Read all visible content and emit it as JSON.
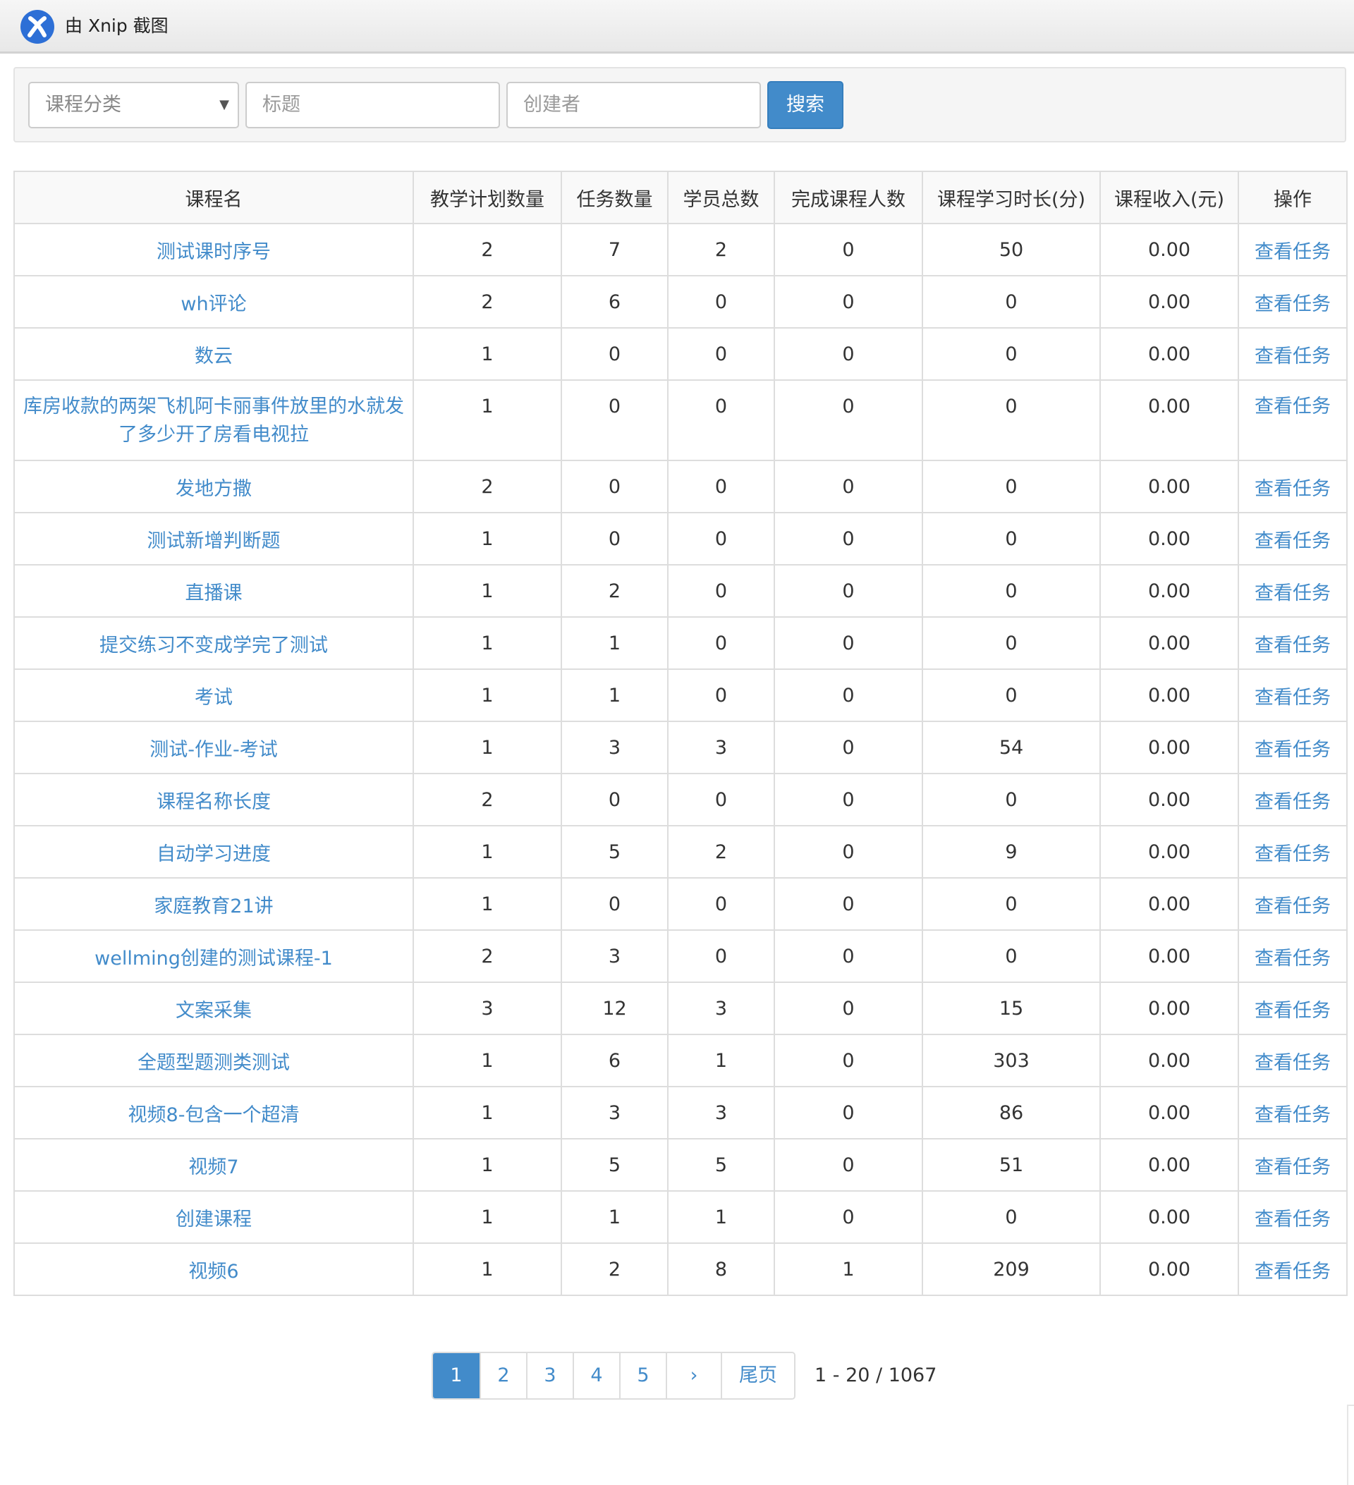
{
  "titlebar": {
    "text": "由 Xnip 截图"
  },
  "search": {
    "category_placeholder": "课程分类",
    "title_placeholder": "标题",
    "creator_placeholder": "创建者",
    "search_label": "搜索"
  },
  "table": {
    "headers": [
      "课程名",
      "教学计划数量",
      "任务数量",
      "学员总数",
      "完成课程人数",
      "课程学习时长(分)",
      "课程收入(元)",
      "操作"
    ],
    "rows": [
      {
        "name": "测试课时序号",
        "plans": "2",
        "tasks": "7",
        "students": "2",
        "completed": "0",
        "duration": "50",
        "income": "0.00",
        "action": "查看任务"
      },
      {
        "name": "wh评论",
        "plans": "2",
        "tasks": "6",
        "students": "0",
        "completed": "0",
        "duration": "0",
        "income": "0.00",
        "action": "查看任务"
      },
      {
        "name": "数云",
        "plans": "1",
        "tasks": "0",
        "students": "0",
        "completed": "0",
        "duration": "0",
        "income": "0.00",
        "action": "查看任务"
      },
      {
        "name": "库房收款的两架飞机阿卡丽事件放里的水就发了多少开了房看电视拉",
        "plans": "1",
        "tasks": "0",
        "students": "0",
        "completed": "0",
        "duration": "0",
        "income": "0.00",
        "action": "查看任务"
      },
      {
        "name": "发地方撒",
        "plans": "2",
        "tasks": "0",
        "students": "0",
        "completed": "0",
        "duration": "0",
        "income": "0.00",
        "action": "查看任务"
      },
      {
        "name": "测试新增判断题",
        "plans": "1",
        "tasks": "0",
        "students": "0",
        "completed": "0",
        "duration": "0",
        "income": "0.00",
        "action": "查看任务"
      },
      {
        "name": "直播课",
        "plans": "1",
        "tasks": "2",
        "students": "0",
        "completed": "0",
        "duration": "0",
        "income": "0.00",
        "action": "查看任务"
      },
      {
        "name": "提交练习不变成学完了测试",
        "plans": "1",
        "tasks": "1",
        "students": "0",
        "completed": "0",
        "duration": "0",
        "income": "0.00",
        "action": "查看任务"
      },
      {
        "name": "考试",
        "plans": "1",
        "tasks": "1",
        "students": "0",
        "completed": "0",
        "duration": "0",
        "income": "0.00",
        "action": "查看任务"
      },
      {
        "name": "测试-作业-考试",
        "plans": "1",
        "tasks": "3",
        "students": "3",
        "completed": "0",
        "duration": "54",
        "income": "0.00",
        "action": "查看任务"
      },
      {
        "name": "课程名称长度",
        "plans": "2",
        "tasks": "0",
        "students": "0",
        "completed": "0",
        "duration": "0",
        "income": "0.00",
        "action": "查看任务"
      },
      {
        "name": "自动学习进度",
        "plans": "1",
        "tasks": "5",
        "students": "2",
        "completed": "0",
        "duration": "9",
        "income": "0.00",
        "action": "查看任务"
      },
      {
        "name": "家庭教育21讲",
        "plans": "1",
        "tasks": "0",
        "students": "0",
        "completed": "0",
        "duration": "0",
        "income": "0.00",
        "action": "查看任务"
      },
      {
        "name": "wellming创建的测试课程-1",
        "plans": "2",
        "tasks": "3",
        "students": "0",
        "completed": "0",
        "duration": "0",
        "income": "0.00",
        "action": "查看任务"
      },
      {
        "name": "文案采集",
        "plans": "3",
        "tasks": "12",
        "students": "3",
        "completed": "0",
        "duration": "15",
        "income": "0.00",
        "action": "查看任务"
      },
      {
        "name": "全题型题测类测试",
        "plans": "1",
        "tasks": "6",
        "students": "1",
        "completed": "0",
        "duration": "303",
        "income": "0.00",
        "action": "查看任务"
      },
      {
        "name": "视频8-包含一个超清",
        "plans": "1",
        "tasks": "3",
        "students": "3",
        "completed": "0",
        "duration": "86",
        "income": "0.00",
        "action": "查看任务"
      },
      {
        "name": "视频7",
        "plans": "1",
        "tasks": "5",
        "students": "5",
        "completed": "0",
        "duration": "51",
        "income": "0.00",
        "action": "查看任务"
      },
      {
        "name": "创建课程",
        "plans": "1",
        "tasks": "1",
        "students": "1",
        "completed": "0",
        "duration": "0",
        "income": "0.00",
        "action": "查看任务"
      },
      {
        "name": "视频6",
        "plans": "1",
        "tasks": "2",
        "students": "8",
        "completed": "1",
        "duration": "209",
        "income": "0.00",
        "action": "查看任务"
      }
    ]
  },
  "pagination": {
    "pages": [
      "1",
      "2",
      "3",
      "4",
      "5"
    ],
    "active_page": "1",
    "next_label": "›",
    "last_label": "尾页",
    "summary": "1 - 20 / 1067"
  },
  "colors": {
    "accent": "#428bca",
    "border": "#dddddd",
    "panel": "#f5f5f5"
  }
}
